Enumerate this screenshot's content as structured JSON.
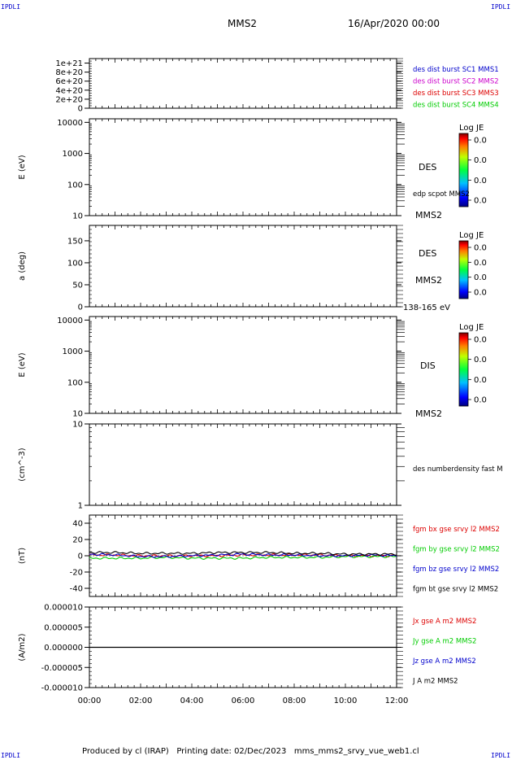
{
  "header": {
    "ipdli_marks": [
      "IPDLI",
      "IPDLI",
      "IPDLI",
      "IPDLI"
    ],
    "spacecraft": "MMS2",
    "datetime": "16/Apr/2020 00:00"
  },
  "footer": {
    "text": "Produced by cl (IRAP)   Printing date: 02/Dec/2023   mms_mms2_srvy_vue_web1.cl"
  },
  "colors": {
    "blue": "#0000cc",
    "magenta": "#cc00cc",
    "red": "#dd0000",
    "green": "#00cc00",
    "black": "#000000"
  },
  "chart_data": [
    {
      "type": "line",
      "ylabel": "",
      "yticks": [
        "1e+21",
        "8e+20",
        "6e+20",
        "4e+20",
        "2e+20",
        "0"
      ],
      "ylim": [
        0,
        1.1e+21
      ],
      "legend": [
        {
          "label": "des dist burst SC1 MMS1",
          "color": "#0000cc"
        },
        {
          "label": "des dist burst SC2 MMS2",
          "color": "#cc00cc"
        },
        {
          "label": "des dist burst SC3 MMS3",
          "color": "#dd0000"
        },
        {
          "label": "des dist burst SC4 MMS4",
          "color": "#00cc00"
        }
      ],
      "series": [
        {
          "values": [
            0,
            0
          ]
        }
      ]
    },
    {
      "type": "heatmap",
      "ylabel": "E (eV)",
      "yscale": "log",
      "yticks": [
        "10000",
        "1000",
        "100",
        "10"
      ],
      "ylim": [
        10,
        13000
      ],
      "right_labels": [
        "DES",
        "edp scpot MMS2",
        "MMS2"
      ],
      "colorbar": {
        "title": "Log JE",
        "ticks": [
          "0.0",
          "0.0",
          "0.0",
          "0.0"
        ]
      }
    },
    {
      "type": "heatmap",
      "ylabel": "a (deg)",
      "yticks": [
        "150",
        "100",
        "50",
        "0"
      ],
      "ylim": [
        0,
        185
      ],
      "right_labels": [
        "DES",
        "MMS2",
        "138-165 eV"
      ],
      "colorbar": {
        "title": "Log JE",
        "ticks": [
          "0.0",
          "0.0",
          "0.0",
          "0.0"
        ]
      }
    },
    {
      "type": "heatmap",
      "ylabel": "E (eV)",
      "yscale": "log",
      "yticks": [
        "10000",
        "1000",
        "100",
        "10"
      ],
      "ylim": [
        10,
        13000
      ],
      "right_labels": [
        "DIS",
        "MMS2"
      ],
      "colorbar": {
        "title": "Log JE",
        "ticks": [
          "0.0",
          "0.0",
          "0.0",
          "0.0"
        ]
      }
    },
    {
      "type": "line",
      "ylabel": "(cm^-3)",
      "yscale": "log",
      "yticks": [
        "10",
        "1"
      ],
      "ylim": [
        1,
        10
      ],
      "legend": [
        {
          "label": "des numberdensity fast M",
          "color": "#000000"
        }
      ],
      "series": []
    },
    {
      "type": "line",
      "ylabel": "(nT)",
      "yticks": [
        "40",
        "20",
        "0",
        "-20",
        "-40"
      ],
      "ylim": [
        -50,
        50
      ],
      "x": [
        "00:00",
        "01:00",
        "02:00",
        "03:00",
        "04:00",
        "05:00",
        "06:00",
        "07:00",
        "08:00",
        "09:00",
        "10:00",
        "11:00",
        "12:00"
      ],
      "legend": [
        {
          "label": "fgm bx gse srvy l2 MMS2",
          "color": "#dd0000"
        },
        {
          "label": "fgm by gse srvy l2 MMS2",
          "color": "#00cc00"
        },
        {
          "label": "fgm bz gse srvy l2 MMS2",
          "color": "#0000cc"
        },
        {
          "label": "fgm bt gse srvy l2 MMS2",
          "color": "#000000"
        }
      ],
      "series": [
        {
          "name": "fgm bx gse srvy l2 MMS2",
          "color": "#dd0000",
          "values": [
            1,
            1,
            0,
            0,
            0,
            0,
            1,
            1,
            1,
            1,
            0,
            0,
            0
          ]
        },
        {
          "name": "fgm by gse srvy l2 MMS2",
          "color": "#00cc00",
          "values": [
            -3,
            -3,
            -3,
            -2,
            -3,
            -3,
            -3,
            -2,
            -2,
            -2,
            -1,
            -1,
            -1
          ]
        },
        {
          "name": "fgm bz gse srvy l2 MMS2",
          "color": "#0000cc",
          "values": [
            2,
            1,
            -1,
            -1,
            0,
            1,
            2,
            1,
            1,
            0,
            0,
            1,
            0
          ]
        },
        {
          "name": "fgm bt gse srvy l2 MMS2",
          "color": "#000000",
          "values": [
            4,
            4,
            3,
            3,
            3,
            4,
            4,
            4,
            3,
            3,
            2,
            2,
            2
          ]
        }
      ]
    },
    {
      "type": "line",
      "ylabel": "(A/m2)",
      "yticks": [
        "0.000010",
        "0.000005",
        "0.000000",
        "-0.000005",
        "-0.000010"
      ],
      "ylim": [
        -1e-05,
        1e-05
      ],
      "xticks": [
        "00:00",
        "02:00",
        "04:00",
        "06:00",
        "08:00",
        "10:00",
        "12:00"
      ],
      "legend": [
        {
          "label": "Jx gse A m2 MMS2",
          "color": "#dd0000"
        },
        {
          "label": "Jy gse A m2 MMS2",
          "color": "#00cc00"
        },
        {
          "label": "Jz gse A m2 MMS2",
          "color": "#0000cc"
        },
        {
          "label": "J A m2 MMS2",
          "color": "#000000"
        }
      ],
      "series": [
        {
          "name": "J A m2 MMS2",
          "color": "#000000",
          "values": [
            0,
            0,
            0,
            0,
            0,
            0,
            0,
            0,
            0,
            0,
            0,
            0,
            0
          ]
        }
      ]
    }
  ]
}
